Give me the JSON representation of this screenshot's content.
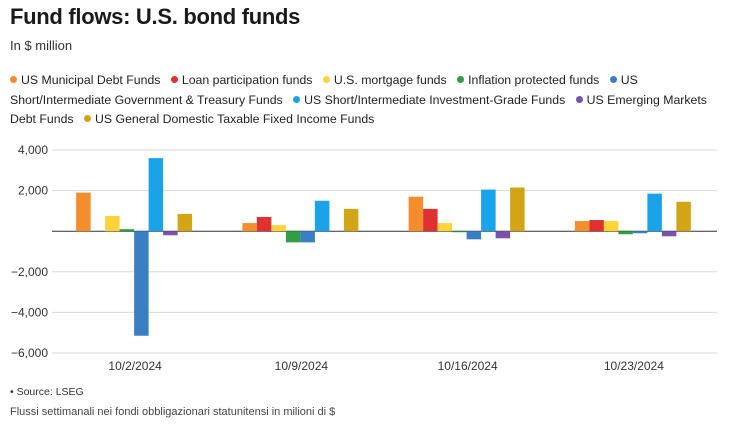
{
  "header": {
    "title": "Fund flows: U.S. bond funds",
    "subtitle": "In $ million"
  },
  "footer": {
    "source": "• Source: LSEG",
    "note": "Flussi settimanali nei fondi obbligazionari statunitensi in milioni di $"
  },
  "chart_data": {
    "type": "bar",
    "title": "Fund flows: U.S. bond funds",
    "ylabel": "In $ million",
    "xlabel": "",
    "ylim": [
      -6000,
      4000
    ],
    "yticks": [
      4000,
      2000,
      0,
      -2000,
      -4000,
      -6000
    ],
    "ytick_labels": [
      "4,000",
      "2,000",
      "",
      "−2,000",
      "−4,000",
      "−6,000"
    ],
    "grid": true,
    "legend_position": "top",
    "categories": [
      "10/2/2024",
      "10/9/2024",
      "10/16/2024",
      "10/23/2024"
    ],
    "series": [
      {
        "name": "US Municipal Debt Funds",
        "color": "#f28e2b",
        "values": [
          1900,
          400,
          1700,
          500
        ]
      },
      {
        "name": "Loan participation funds",
        "color": "#e03131",
        "values": [
          0,
          700,
          1100,
          550
        ]
      },
      {
        "name": "U.S. mortgage funds",
        "color": "#ffd43b",
        "values": [
          750,
          300,
          400,
          500
        ]
      },
      {
        "name": "Inflation protected funds",
        "color": "#2f9e44",
        "values": [
          100,
          -550,
          -50,
          -150
        ]
      },
      {
        "name": "US Short/Intermediate Government & Treasury Funds",
        "color": "#3a7fc4",
        "values": [
          -5150,
          -550,
          -400,
          -100
        ]
      },
      {
        "name": "US Short/Intermediate Investment-Grade Funds",
        "color": "#1aa3e8",
        "values": [
          3600,
          1500,
          2050,
          1850
        ]
      },
      {
        "name": "US Emerging Markets Debt Funds",
        "color": "#7b52ab",
        "values": [
          -200,
          0,
          -350,
          -250
        ]
      },
      {
        "name": "US General Domestic Taxable Fixed Income Funds",
        "color": "#d4a417",
        "values": [
          850,
          1100,
          2150,
          1450
        ]
      }
    ]
  }
}
